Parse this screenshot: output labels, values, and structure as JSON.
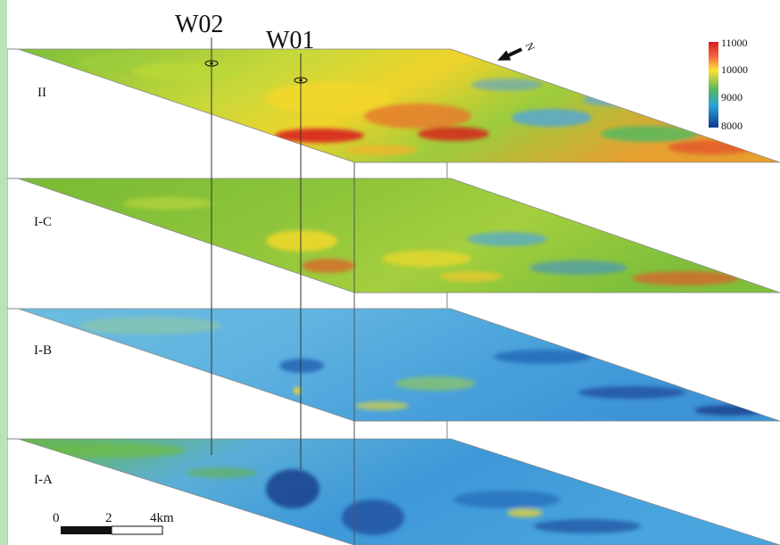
{
  "wells": [
    {
      "name": "W02",
      "label": "W02"
    },
    {
      "name": "W01",
      "label": "W01"
    }
  ],
  "layers": [
    {
      "id": "II",
      "label": "II"
    },
    {
      "id": "I-C",
      "label": "I-C"
    },
    {
      "id": "I-B",
      "label": "I-B"
    },
    {
      "id": "I-A",
      "label": "I-A"
    }
  ],
  "north_arrow": {
    "label": "N"
  },
  "legend": {
    "ticks": [
      "11000",
      "10000",
      "9000",
      "8000"
    ],
    "colors": {
      "high": "#d7191c",
      "mid_high": "#fdae61",
      "mid": "#ffff33",
      "mid_low": "#5cb85c",
      "low": "#2c7bb6",
      "lowest": "#0d3a8c"
    }
  },
  "scale_bar": {
    "ticks": [
      "0",
      "2",
      "4km"
    ]
  },
  "colors": {
    "page_background": "#b8e4b9",
    "layer_green": "#6fb632",
    "layer_blue": "#4fa6dc",
    "hot_red": "#d7191c",
    "warm_yellow": "#f3df2a"
  }
}
